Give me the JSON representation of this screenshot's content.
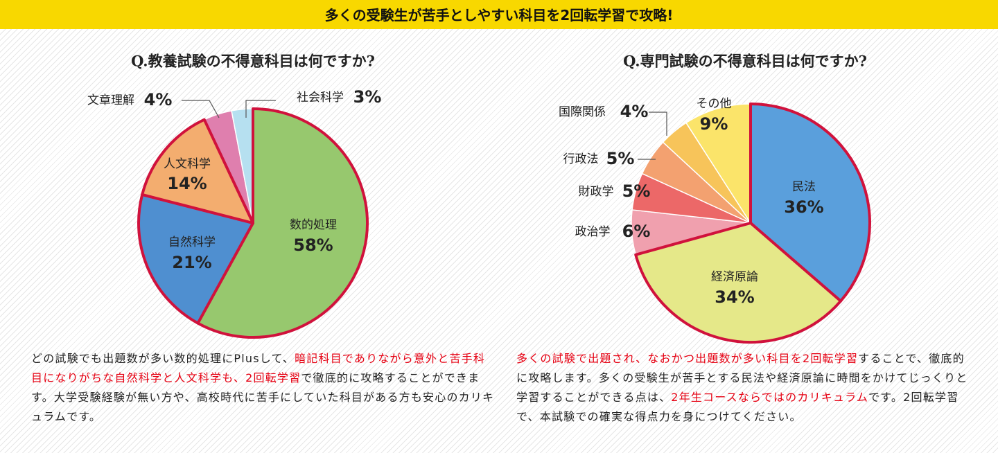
{
  "header": {
    "title": "多くの受験生が苦手としやすい科目を2回転学習で攻略!"
  },
  "chart_data": [
    {
      "type": "pie",
      "title": "Q.教養試験の不得意科目は何ですか?",
      "categories": [
        "数的処理",
        "自然科学",
        "人文科学",
        "文章理解",
        "社会科学"
      ],
      "values": [
        58,
        21,
        14,
        4,
        3
      ],
      "value_labels": [
        "58%",
        "21%",
        "14%",
        "4%",
        "3%"
      ],
      "colors": [
        "#97c86e",
        "#4f8fd0",
        "#f3ad6f",
        "#df7fae",
        "#b6e0f0"
      ],
      "highlight": [
        true,
        true,
        true,
        false,
        false
      ],
      "highlight_color": "#d0123c"
    },
    {
      "type": "pie",
      "title": "Q.専門試験の不得意科目は何ですか?",
      "categories": [
        "民法",
        "経済原論",
        "政治学",
        "財政学",
        "行政法",
        "国際関係",
        "その他"
      ],
      "values": [
        36,
        34,
        6,
        5,
        5,
        4,
        9
      ],
      "value_labels": [
        "36%",
        "34%",
        "6%",
        "5%",
        "5%",
        "4%",
        "9%"
      ],
      "colors": [
        "#5a9fdc",
        "#e5e889",
        "#f0a0ae",
        "#ec6868",
        "#f3a170",
        "#f7c45a",
        "#fbe46a"
      ],
      "highlight": [
        true,
        true,
        false,
        false,
        false,
        false,
        false
      ],
      "highlight_color": "#d0123c"
    }
  ],
  "notes": [
    {
      "color_normal": "#222222",
      "color_accent": "#e60012",
      "segments": [
        {
          "text": "どの試験でも出題数が多い数的処理にPlusして、",
          "accent": false
        },
        {
          "text": "暗記科目でありながら意外と苦手科目になりがちな自然科学と人文科学も、2回転学習",
          "accent": true
        },
        {
          "text": "で徹底的に攻略することができます。大学受験経験が無い方や、高校時代に苦手にしていた科目がある方も安心のカリキュラムです。",
          "accent": false
        }
      ]
    },
    {
      "color_normal": "#222222",
      "color_accent": "#e60012",
      "segments": [
        {
          "text": "多くの試験で出題され、なおかつ出題数が多い科目を2回転学習",
          "accent": true
        },
        {
          "text": "することで、徹底的に攻略します。多くの受験生が苦手とする民法や経済原論に時間をかけてじっくりと学習することができる点は、",
          "accent": false
        },
        {
          "text": "2年生コースならではのカリキュラム",
          "accent": true
        },
        {
          "text": "です。2回転学習で、本試験での確実な得点力を身につけてください。",
          "accent": false
        }
      ]
    }
  ]
}
